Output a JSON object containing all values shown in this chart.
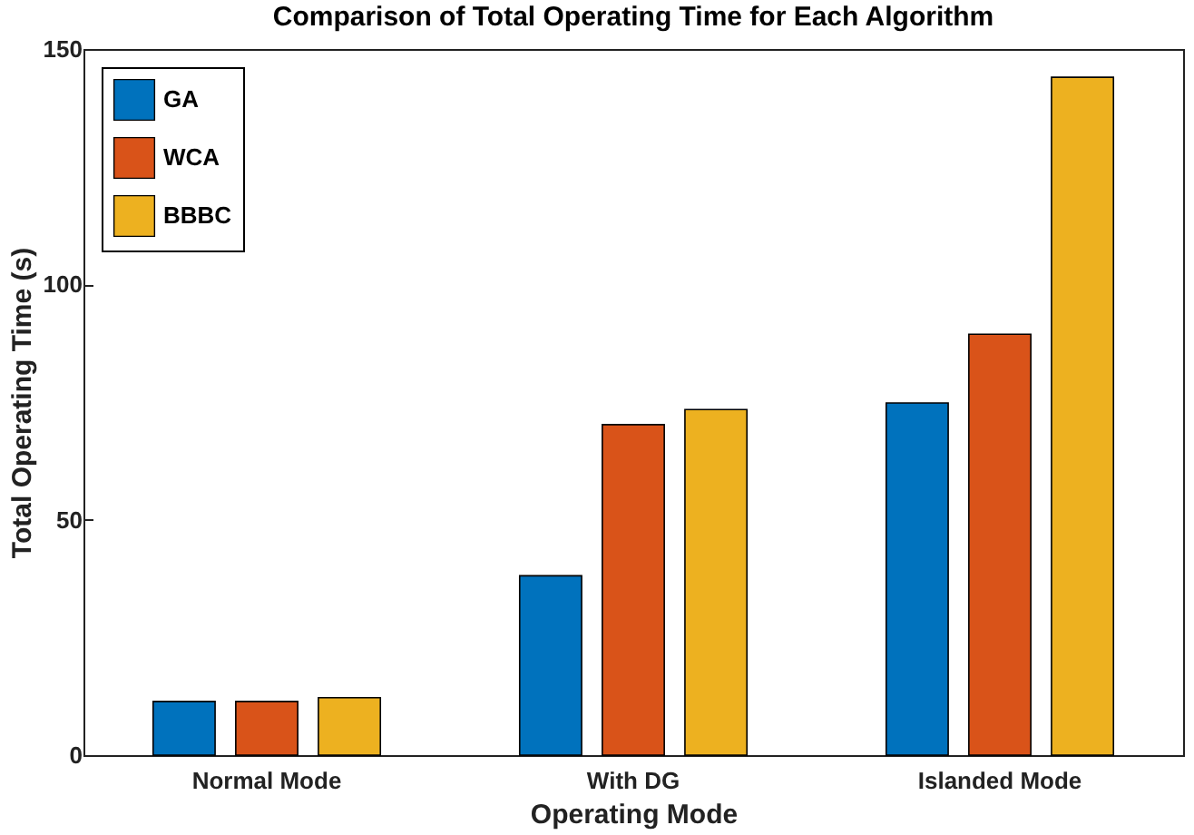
{
  "chart_data": {
    "type": "bar",
    "title": "Comparison of Total Operating Time for Each Algorithm",
    "xlabel": "Operating Mode",
    "ylabel": "Total Operating Time (s)",
    "categories": [
      "Normal Mode",
      "With DG",
      "Islanded Mode"
    ],
    "series": [
      {
        "name": "GA",
        "color": "#0072bd",
        "values": [
          11.4,
          38.1,
          74.8
        ]
      },
      {
        "name": "WCA",
        "color": "#d95319",
        "values": [
          11.4,
          70.2,
          89.4
        ]
      },
      {
        "name": "BBBC",
        "color": "#edb120",
        "values": [
          12.2,
          73.4,
          144
        ]
      }
    ],
    "ylim": [
      0,
      150
    ],
    "yticks": [
      0,
      50,
      100,
      150
    ],
    "grid": false,
    "legend": "top left"
  }
}
